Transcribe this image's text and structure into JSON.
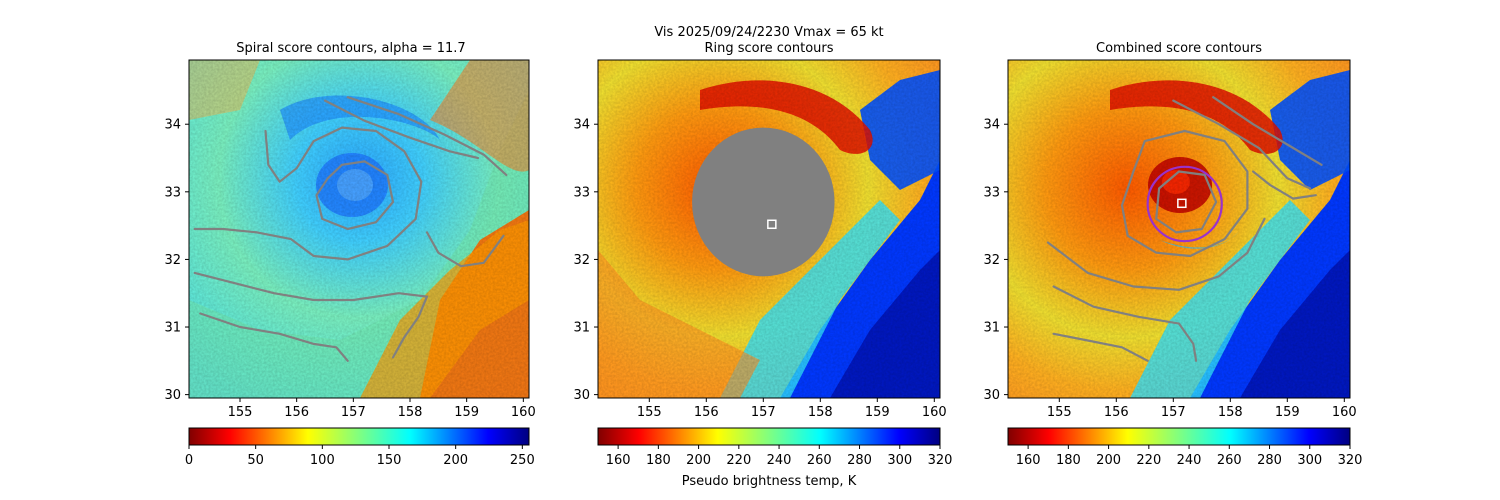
{
  "figure": {
    "suptitle": "Vis  2025/09/24/2230    Vmax = 65 kt",
    "colorbar_label": "Pseudo brightness temp, K"
  },
  "colors": {
    "contour": "#808080",
    "ring_mask": "#808080",
    "center_marker": "#ffffff",
    "best_ring": "#9932cc"
  },
  "chart_data": [
    {
      "type": "heatmap",
      "panel": "left",
      "title": "Spiral score contours, alpha = 11.7",
      "xlim": [
        154.1,
        160.1
      ],
      "ylim": [
        29.95,
        34.95
      ],
      "xticks": [
        155,
        156,
        157,
        158,
        159,
        160
      ],
      "yticks": [
        30,
        31,
        32,
        33,
        34
      ],
      "colormap": "jet_r",
      "colorbar": {
        "min": 0,
        "max": 255,
        "ticks": [
          0,
          50,
          100,
          150,
          200,
          250
        ]
      },
      "storm_center": [
        157.1,
        32.9
      ],
      "spiral_contours": [
        [
          [
            156.5,
            34.35
          ],
          [
            157.2,
            34.05
          ],
          [
            158.0,
            33.8
          ],
          [
            158.7,
            33.6
          ],
          [
            159.2,
            33.5
          ]
        ],
        [
          [
            156.9,
            34.4
          ],
          [
            157.8,
            34.15
          ],
          [
            158.6,
            33.85
          ],
          [
            159.3,
            33.55
          ],
          [
            159.7,
            33.25
          ]
        ],
        [
          [
            155.45,
            33.9
          ],
          [
            155.5,
            33.4
          ],
          [
            155.7,
            33.15
          ],
          [
            156.0,
            33.35
          ],
          [
            156.3,
            33.75
          ],
          [
            156.8,
            33.95
          ],
          [
            157.4,
            33.9
          ],
          [
            157.9,
            33.6
          ],
          [
            158.2,
            33.15
          ],
          [
            158.1,
            32.6
          ],
          [
            157.6,
            32.2
          ],
          [
            156.9,
            32.0
          ],
          [
            156.3,
            32.05
          ],
          [
            155.9,
            32.3
          ],
          [
            155.3,
            32.4
          ],
          [
            154.7,
            32.45
          ],
          [
            154.2,
            32.45
          ]
        ],
        [
          [
            156.55,
            33.2
          ],
          [
            156.8,
            33.4
          ],
          [
            157.2,
            33.45
          ],
          [
            157.6,
            33.25
          ],
          [
            157.7,
            32.85
          ],
          [
            157.4,
            32.55
          ],
          [
            156.9,
            32.45
          ],
          [
            156.45,
            32.6
          ],
          [
            156.35,
            32.95
          ],
          [
            156.55,
            33.2
          ]
        ],
        [
          [
            154.2,
            31.8
          ],
          [
            154.9,
            31.65
          ],
          [
            155.6,
            31.5
          ],
          [
            156.3,
            31.4
          ],
          [
            157.0,
            31.4
          ],
          [
            157.8,
            31.5
          ],
          [
            158.3,
            31.45
          ],
          [
            158.15,
            31.15
          ],
          [
            157.9,
            30.85
          ],
          [
            157.7,
            30.55
          ]
        ],
        [
          [
            154.3,
            31.2
          ],
          [
            155.0,
            31.0
          ],
          [
            155.7,
            30.9
          ],
          [
            156.3,
            30.75
          ],
          [
            156.7,
            30.7
          ],
          [
            156.9,
            30.5
          ]
        ],
        [
          [
            158.3,
            32.4
          ],
          [
            158.5,
            32.1
          ],
          [
            158.9,
            31.9
          ],
          [
            159.3,
            31.95
          ],
          [
            159.65,
            32.35
          ]
        ]
      ],
      "colorbar_tick_labels": [
        "0",
        "50",
        "100",
        "150",
        "200",
        "250"
      ]
    },
    {
      "type": "heatmap",
      "panel": "middle",
      "title": "Ring score contours",
      "xlim": [
        154.1,
        160.1
      ],
      "ylim": [
        29.95,
        34.95
      ],
      "xticks": [
        155,
        156,
        157,
        158,
        159,
        160
      ],
      "yticks": [
        30,
        31,
        32,
        33,
        34
      ],
      "colormap": "jet_r",
      "colorbar": {
        "min": 150,
        "max": 320,
        "ticks": [
          160,
          180,
          200,
          220,
          240,
          260,
          280,
          300,
          320
        ]
      },
      "ring_mask": {
        "center": [
          157.0,
          32.85
        ],
        "radius_x_deg": 1.25,
        "radius_y_deg": 1.1
      },
      "center_marker": [
        157.15,
        32.52
      ],
      "colorbar_tick_labels": [
        "160",
        "180",
        "200",
        "220",
        "240",
        "260",
        "280",
        "300",
        "320"
      ]
    },
    {
      "type": "heatmap",
      "panel": "right",
      "title": "Combined score contours",
      "xlim": [
        154.1,
        160.1
      ],
      "ylim": [
        29.95,
        34.95
      ],
      "xticks": [
        155,
        156,
        157,
        158,
        159,
        160
      ],
      "yticks": [
        30,
        31,
        32,
        33,
        34
      ],
      "colormap": "jet_r",
      "colorbar": {
        "min": 150,
        "max": 320,
        "ticks": [
          160,
          180,
          200,
          220,
          240,
          260,
          280,
          300,
          320
        ]
      },
      "center_marker": [
        157.15,
        32.83
      ],
      "best_ring": {
        "center": [
          157.2,
          32.82
        ],
        "radius_x_deg": 0.65,
        "radius_y_deg": 0.55
      },
      "spiral_contours": [
        [
          [
            157.0,
            34.35
          ],
          [
            157.8,
            34.0
          ],
          [
            158.5,
            33.65
          ],
          [
            159.0,
            33.2
          ],
          [
            159.4,
            33.05
          ]
        ],
        [
          [
            157.7,
            34.4
          ],
          [
            158.4,
            34.0
          ],
          [
            159.0,
            33.7
          ],
          [
            159.6,
            33.4
          ]
        ],
        [
          [
            156.5,
            33.75
          ],
          [
            157.2,
            33.9
          ],
          [
            157.9,
            33.75
          ],
          [
            158.3,
            33.3
          ],
          [
            158.3,
            32.75
          ],
          [
            157.9,
            32.3
          ],
          [
            157.3,
            32.05
          ],
          [
            156.7,
            32.1
          ],
          [
            156.2,
            32.35
          ],
          [
            156.1,
            32.8
          ],
          [
            156.3,
            33.3
          ],
          [
            156.5,
            33.75
          ]
        ],
        [
          [
            156.75,
            33.05
          ],
          [
            157.1,
            33.3
          ],
          [
            157.55,
            33.25
          ],
          [
            157.75,
            32.85
          ],
          [
            157.5,
            32.45
          ],
          [
            157.05,
            32.4
          ],
          [
            156.7,
            32.6
          ],
          [
            156.75,
            33.05
          ]
        ],
        [
          [
            154.8,
            32.25
          ],
          [
            155.5,
            31.8
          ],
          [
            156.3,
            31.6
          ],
          [
            157.1,
            31.55
          ],
          [
            157.8,
            31.75
          ],
          [
            158.3,
            32.1
          ],
          [
            158.6,
            32.6
          ]
        ],
        [
          [
            154.9,
            31.6
          ],
          [
            155.6,
            31.3
          ],
          [
            156.4,
            31.15
          ],
          [
            157.1,
            31.05
          ],
          [
            157.35,
            30.75
          ],
          [
            157.4,
            30.5
          ]
        ],
        [
          [
            154.9,
            30.9
          ],
          [
            155.5,
            30.8
          ],
          [
            156.1,
            30.7
          ],
          [
            156.55,
            30.5
          ]
        ],
        [
          [
            158.4,
            33.3
          ],
          [
            158.7,
            33.1
          ],
          [
            159.1,
            32.9
          ],
          [
            159.5,
            32.95
          ]
        ]
      ],
      "colorbar_tick_labels": [
        "160",
        "180",
        "200",
        "220",
        "240",
        "260",
        "280",
        "300",
        "320"
      ]
    }
  ]
}
